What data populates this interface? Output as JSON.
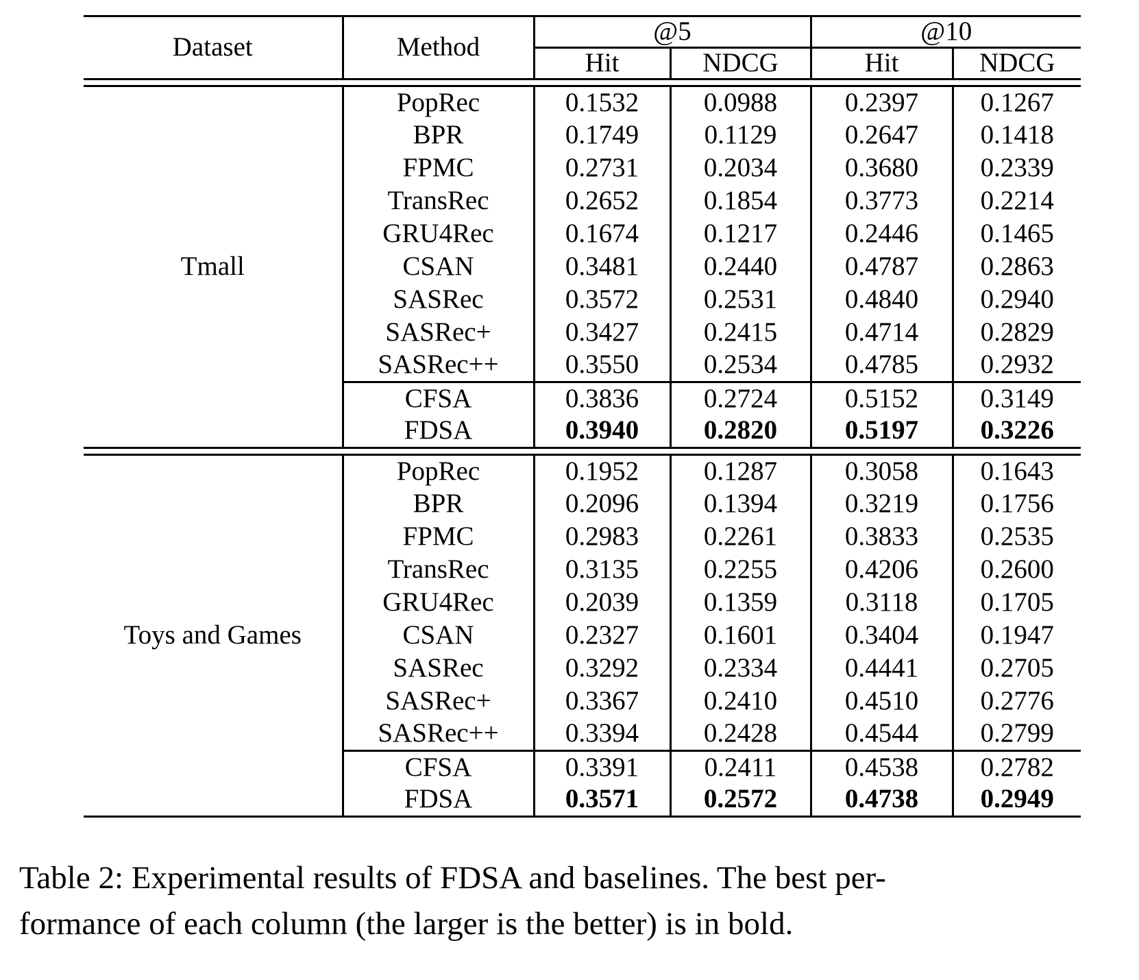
{
  "page": {
    "background_color": "#ffffff",
    "text_color": "#000000",
    "rule_color": "#000000"
  },
  "table": {
    "header": {
      "dataset_label": "Dataset",
      "method_label": "Method",
      "at5_label": "@5",
      "at10_label": "@10",
      "hit_label": "Hit",
      "ndcg_label": "NDCG"
    },
    "metric_columns": [
      "Hit@5",
      "NDCG@5",
      "Hit@10",
      "NDCG@10"
    ],
    "blocks": [
      {
        "dataset": "Tmall",
        "rows": [
          {
            "method": "PopRec",
            "values": [
              "0.1532",
              "0.0988",
              "0.2397",
              "0.1267"
            ],
            "bold_values": false,
            "rule_above": false
          },
          {
            "method": "BPR",
            "values": [
              "0.1749",
              "0.1129",
              "0.2647",
              "0.1418"
            ],
            "bold_values": false,
            "rule_above": false
          },
          {
            "method": "FPMC",
            "values": [
              "0.2731",
              "0.2034",
              "0.3680",
              "0.2339"
            ],
            "bold_values": false,
            "rule_above": false
          },
          {
            "method": "TransRec",
            "values": [
              "0.2652",
              "0.1854",
              "0.3773",
              "0.2214"
            ],
            "bold_values": false,
            "rule_above": false
          },
          {
            "method": "GRU4Rec",
            "values": [
              "0.1674",
              "0.1217",
              "0.2446",
              "0.1465"
            ],
            "bold_values": false,
            "rule_above": false
          },
          {
            "method": "CSAN",
            "values": [
              "0.3481",
              "0.2440",
              "0.4787",
              "0.2863"
            ],
            "bold_values": false,
            "rule_above": false
          },
          {
            "method": "SASRec",
            "values": [
              "0.3572",
              "0.2531",
              "0.4840",
              "0.2940"
            ],
            "bold_values": false,
            "rule_above": false
          },
          {
            "method": "SASRec+",
            "values": [
              "0.3427",
              "0.2415",
              "0.4714",
              "0.2829"
            ],
            "bold_values": false,
            "rule_above": false
          },
          {
            "method": "SASRec++",
            "values": [
              "0.3550",
              "0.2534",
              "0.4785",
              "0.2932"
            ],
            "bold_values": false,
            "rule_above": false
          },
          {
            "method": "CFSA",
            "values": [
              "0.3836",
              "0.2724",
              "0.5152",
              "0.3149"
            ],
            "bold_values": false,
            "rule_above": true
          },
          {
            "method": "FDSA",
            "values": [
              "0.3940",
              "0.2820",
              "0.5197",
              "0.3226"
            ],
            "bold_values": true,
            "rule_above": false
          }
        ]
      },
      {
        "dataset": "Toys and Games",
        "rows": [
          {
            "method": "PopRec",
            "values": [
              "0.1952",
              "0.1287",
              "0.3058",
              "0.1643"
            ],
            "bold_values": false,
            "rule_above": false
          },
          {
            "method": "BPR",
            "values": [
              "0.2096",
              "0.1394",
              "0.3219",
              "0.1756"
            ],
            "bold_values": false,
            "rule_above": false
          },
          {
            "method": "FPMC",
            "values": [
              "0.2983",
              "0.2261",
              "0.3833",
              "0.2535"
            ],
            "bold_values": false,
            "rule_above": false
          },
          {
            "method": "TransRec",
            "values": [
              "0.3135",
              "0.2255",
              "0.4206",
              "0.2600"
            ],
            "bold_values": false,
            "rule_above": false
          },
          {
            "method": "GRU4Rec",
            "values": [
              "0.2039",
              "0.1359",
              "0.3118",
              "0.1705"
            ],
            "bold_values": false,
            "rule_above": false
          },
          {
            "method": "CSAN",
            "values": [
              "0.2327",
              "0.1601",
              "0.3404",
              "0.1947"
            ],
            "bold_values": false,
            "rule_above": false
          },
          {
            "method": "SASRec",
            "values": [
              "0.3292",
              "0.2334",
              "0.4441",
              "0.2705"
            ],
            "bold_values": false,
            "rule_above": false
          },
          {
            "method": "SASRec+",
            "values": [
              "0.3367",
              "0.2410",
              "0.4510",
              "0.2776"
            ],
            "bold_values": false,
            "rule_above": false
          },
          {
            "method": "SASRec++",
            "values": [
              "0.3394",
              "0.2428",
              "0.4544",
              "0.2799"
            ],
            "bold_values": false,
            "rule_above": false
          },
          {
            "method": "CFSA",
            "values": [
              "0.3391",
              "0.2411",
              "0.4538",
              "0.2782"
            ],
            "bold_values": false,
            "rule_above": true
          },
          {
            "method": "FDSA",
            "values": [
              "0.3571",
              "0.2572",
              "0.4738",
              "0.2949"
            ],
            "bold_values": true,
            "rule_above": false
          }
        ]
      }
    ]
  },
  "caption": {
    "line1": "Table 2: Experimental results of FDSA and baselines. The best per-",
    "line2": "formance of each column (the larger is the better) is in bold."
  }
}
